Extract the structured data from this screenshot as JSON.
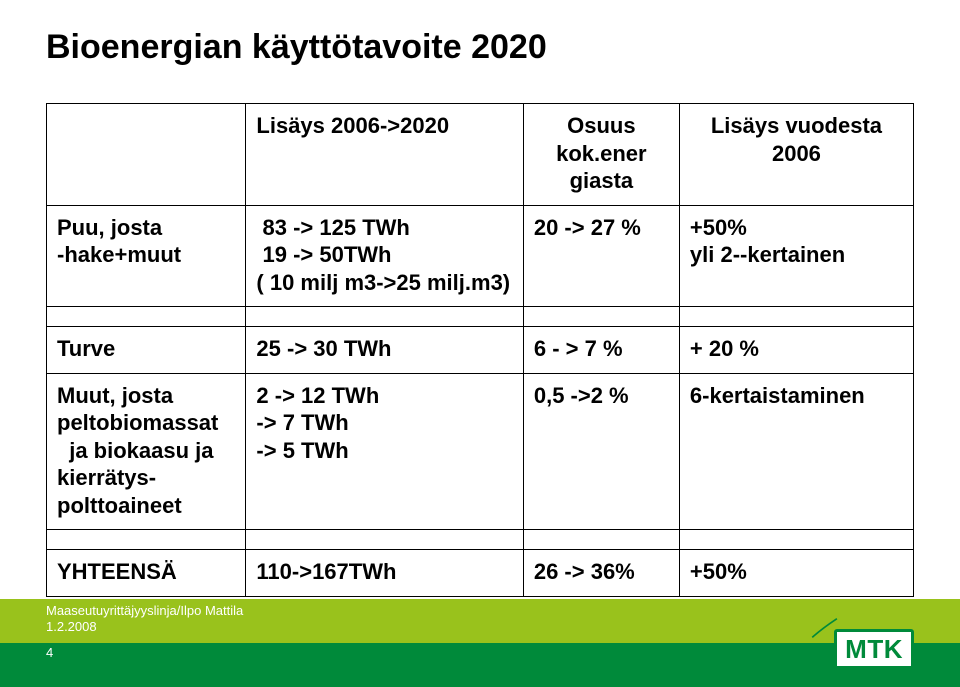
{
  "title": "Bioenergian käyttötavoite 2020",
  "colors": {
    "text": "#000000",
    "border": "#000000",
    "background": "#ffffff",
    "band": "#99c21c",
    "green": "#008a3a"
  },
  "table": {
    "header": {
      "c0": "",
      "c1": "Lisäys 2006->2020",
      "c2": "Osuus kok.ener\ngiasta",
      "c3": "Lisäys vuodesta 2006"
    },
    "rows": [
      {
        "c0": "Puu, josta\n-hake+muut",
        "c1": " 83 -> 125 TWh\n 19 -> 50TWh\n( 10 milj m3->25 milj.m3)",
        "c2": "20 -> 27 %",
        "c3": "+50%\nyli 2--kertainen"
      },
      {
        "c0": "Turve",
        "c1": "25 -> 30 TWh",
        "c2": "6 - > 7 %",
        "c3": "+ 20 %"
      },
      {
        "c0": "Muut, josta\npeltobiomassat\n  ja biokaasu ja\nkierrätys-\npolttoaineet",
        "c1": "2 -> 12 TWh\n-> 7 TWh\n-> 5 TWh",
        "c2": "0,5 ->2 %",
        "c3": "6-kertaistaminen"
      },
      {
        "c0": "YHTEENSÄ",
        "c1": "110->167TWh",
        "c2": "26 -> 36%",
        "c3": "+50%"
      }
    ]
  },
  "footer": {
    "line1": "Maaseutuyrittäjyyslinja/Ilpo Mattila",
    "line2": "1.2.2008",
    "page": "4"
  },
  "logo": {
    "text": "MTK"
  }
}
